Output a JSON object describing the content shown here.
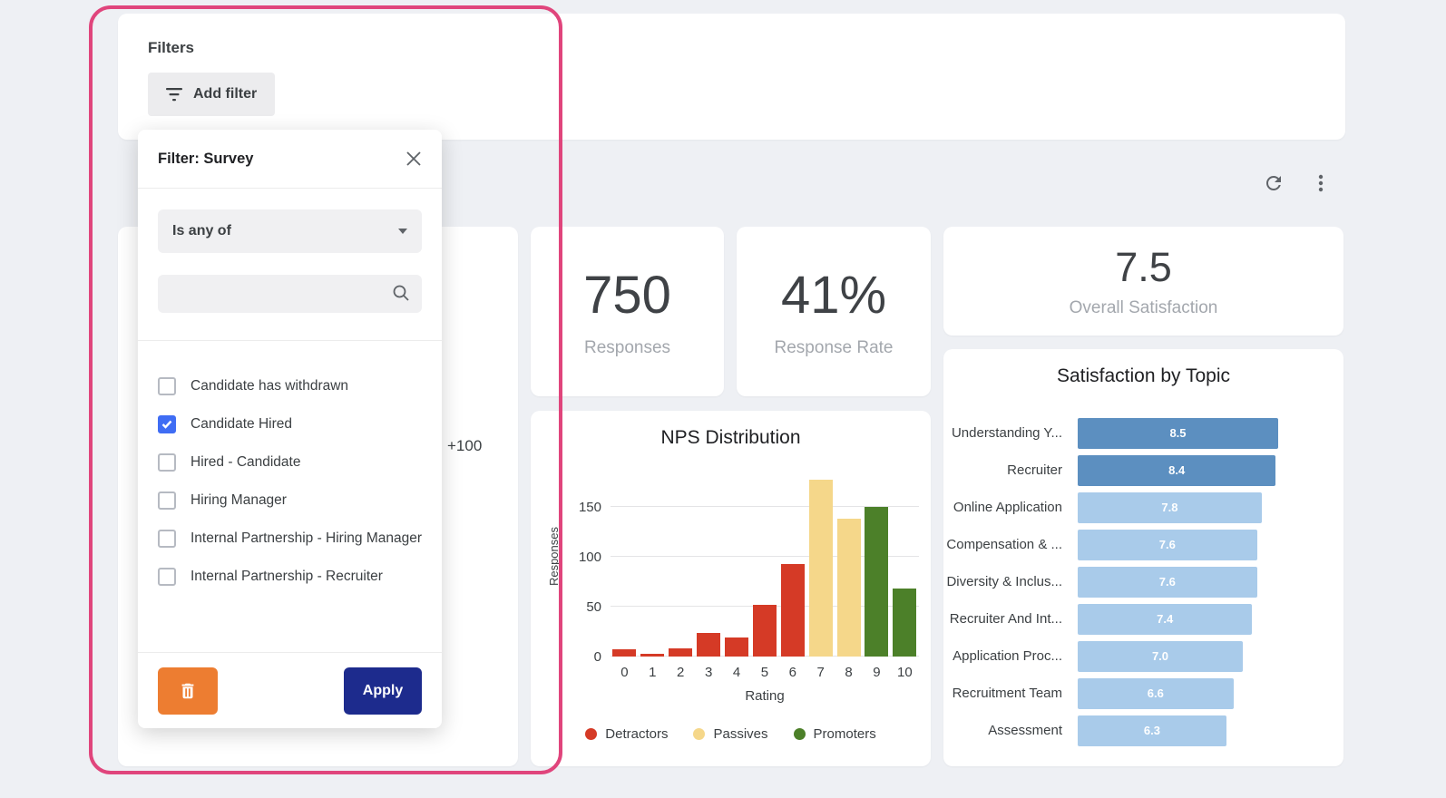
{
  "filters_bar": {
    "title": "Filters",
    "add_filter_label": "Add filter"
  },
  "filter_popup": {
    "title": "Filter: Survey",
    "operator": "Is any of",
    "search_value": "",
    "search_placeholder": "",
    "options": [
      {
        "label": "Candidate has withdrawn",
        "checked": false
      },
      {
        "label": "Candidate Hired",
        "checked": true
      },
      {
        "label": "Hired - Candidate",
        "checked": false
      },
      {
        "label": "Hiring Manager",
        "checked": false
      },
      {
        "label": "Internal Partnership - Hiring Manager",
        "checked": false
      },
      {
        "label": "Internal Partnership - Recruiter",
        "checked": false
      }
    ],
    "apply_label": "Apply"
  },
  "hidden_card": {
    "more_label": "+100"
  },
  "kpis": [
    {
      "value": "750",
      "label": "Responses"
    },
    {
      "value": "41%",
      "label": "Response Rate"
    },
    {
      "value": "7.5",
      "label": "Overall Satisfaction"
    }
  ],
  "chart_data": [
    {
      "type": "bar",
      "title": "NPS Distribution",
      "xlabel": "Rating",
      "ylabel": "Responses",
      "categories": [
        0,
        1,
        2,
        3,
        4,
        5,
        6,
        7,
        8,
        9,
        10
      ],
      "values": [
        7,
        3,
        8,
        24,
        19,
        52,
        93,
        177,
        138,
        150,
        68
      ],
      "groups": [
        "detractor",
        "detractor",
        "detractor",
        "detractor",
        "detractor",
        "detractor",
        "detractor",
        "passive",
        "passive",
        "promoter",
        "promoter"
      ],
      "group_colors": {
        "detractor": "#d53a26",
        "passive": "#f5d78a",
        "promoter": "#4c8029"
      },
      "yticks": [
        0,
        50,
        100,
        150
      ],
      "ylim": [
        0,
        188
      ],
      "legend": [
        {
          "label": "Detractors",
          "color": "#d53a26"
        },
        {
          "label": "Passives",
          "color": "#f5d78a"
        },
        {
          "label": "Promoters",
          "color": "#4c8029"
        }
      ],
      "legend_position": "bottom",
      "grid": true
    },
    {
      "type": "bar",
      "orientation": "horizontal",
      "title": "Satisfaction by Topic",
      "categories": [
        "Understanding Y...",
        "Recruiter",
        "Online Application",
        "Compensation & ...",
        "Diversity & Inclus...",
        "Recruiter And Int...",
        "Application Proc...",
        "Recruitment Team",
        "Assessment"
      ],
      "values": [
        8.5,
        8.4,
        7.8,
        7.6,
        7.6,
        7.4,
        7.0,
        6.6,
        6.3
      ],
      "bar_colors": [
        "#5c8fc0",
        "#5c8fc0",
        "#a9cbea",
        "#a9cbea",
        "#a9cbea",
        "#a9cbea",
        "#a9cbea",
        "#a9cbea",
        "#a9cbea"
      ],
      "xlim": [
        0,
        8.5
      ],
      "value_labels": "inside"
    }
  ],
  "colors": {
    "annotation_pink": "#e0457c",
    "checkbox_blue": "#3f6df4",
    "trash_orange": "#ed7d31",
    "apply_navy": "#1d2b8d",
    "bar_dark_blue": "#5c8fc0",
    "bar_light_blue": "#a9cbea",
    "nps_red": "#d53a26",
    "nps_yellow": "#f5d78a",
    "nps_green": "#4c8029",
    "background": "#eef0f4"
  }
}
